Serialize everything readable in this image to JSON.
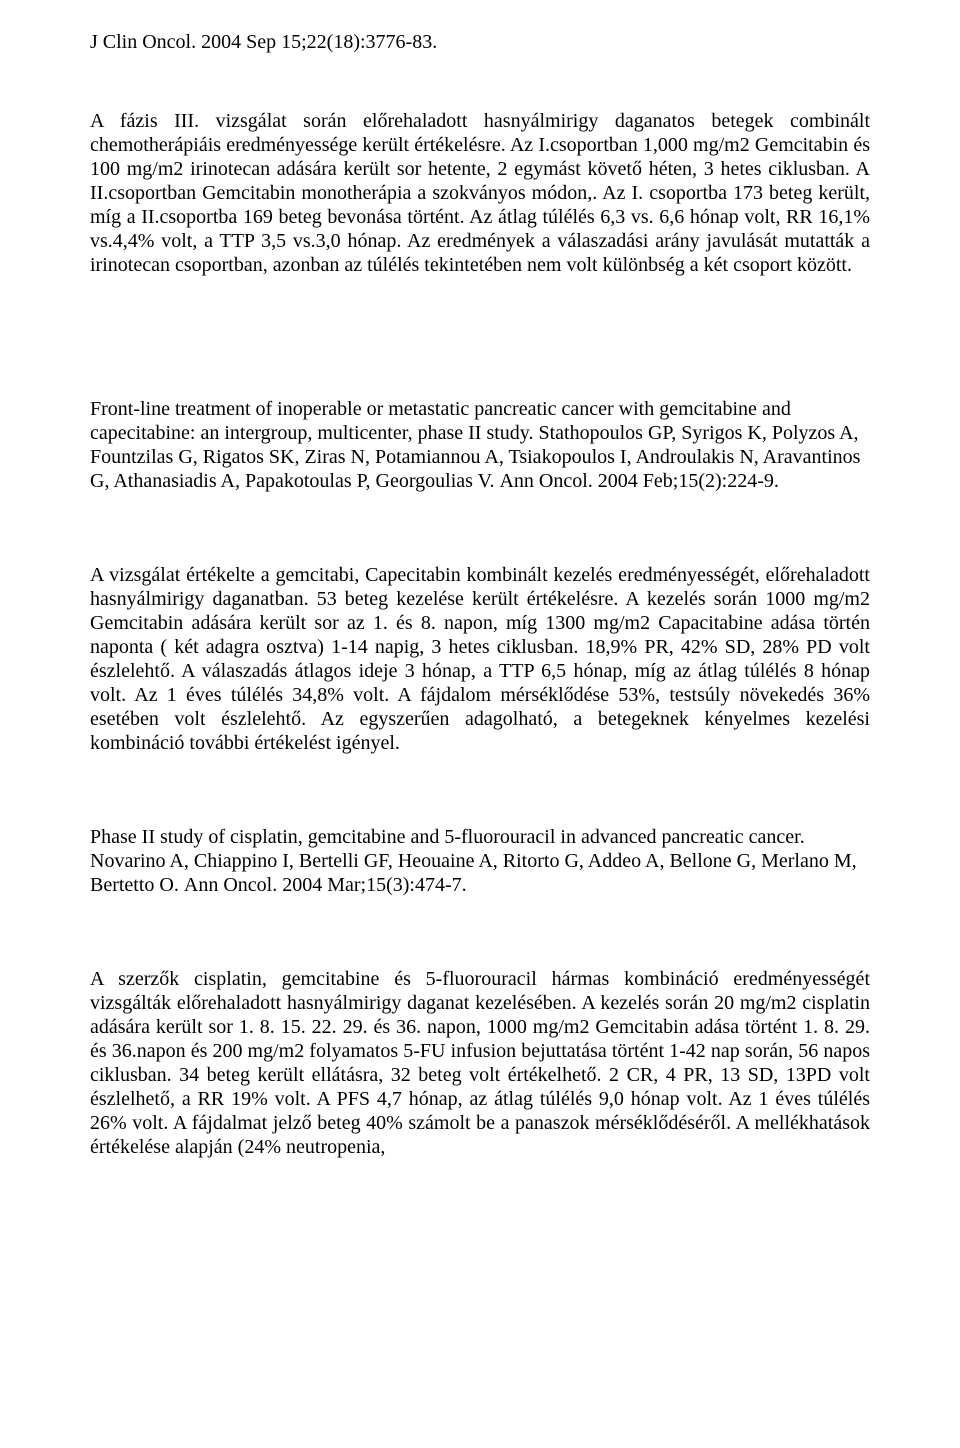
{
  "header": {
    "citation": "J Clin Oncol. 2004 Sep 15;22(18):3776-83."
  },
  "section1": {
    "para": "A fázis III. vizsgálat során előrehaladott hasnyálmirigy daganatos betegek combinált chemotherápiáis eredményessége került értékelésre. Az I.csoportban 1,000 mg/m2 Gemcitabin és 100 mg/m2 irinotecan adására került sor hetente, 2 egymást követő héten, 3 hetes ciklusban.  A II.csoportban Gemcitabin monotherápia a szokványos módon,. Az I. csoportba 173 beteg került, míg a II.csoportba 169 beteg bevonása történt. Az átlag túlélés 6,3 vs. 6,6 hónap volt, RR 16,1% vs.4,4% volt, a TTP 3,5 vs.3,0 hónap. Az eredmények a válaszadási arány javulását mutatták a irinotecan csoportban, azonban az túlélés tekintetében nem volt különbség a két csoport között."
  },
  "section2": {
    "title_line1": "Front-line treatment of inoperable or metastatic pancreatic cancer with",
    "title_line2": "gemcitabine and capecitabine: an intergroup, multicenter, phase II study.",
    "authors_line1": "Stathopoulos GP, Syrigos K, Polyzos A, Fountzilas G, Rigatos SK, Ziras N,",
    "authors_line2": "Potamiannou A, Tsiakopoulos I, Androulakis N, Aravantinos G, Athanasiadis A,",
    "authors_line3": "Papakotoulas P, Georgoulias V.",
    "citation": "Ann Oncol. 2004 Feb;15(2):224-9.",
    "para": "A vizsgálat értékelte a gemcitabi, Capecitabin kombinált kezelés eredményességét, előrehaladott hasnyálmirigy daganatban. 53 beteg kezelése került értékelésre. A kezelés során 1000 mg/m2 Gemcitabin adására került sor az 1. és 8. napon, míg 1300 mg/m2 Capacitabine adása történ naponta ( két adagra osztva) 1-14 napig, 3 hetes ciklusban. 18,9% PR, 42% SD, 28% PD volt észlelehtő. A válaszadás átlagos ideje 3 hónap, a TTP 6,5 hónap, míg az átlag túlélés 8 hónap volt. Az 1 éves túlélés 34,8% volt. A fájdalom mérséklődése 53%, testsúly növekedés 36% esetében volt észlelehtő.  Az egyszerűen adagolható, a betegeknek kényelmes kezelési kombináció további értékelést igényel."
  },
  "section3": {
    "title_line1": "Phase II study of cisplatin, gemcitabine and 5-fluorouracil in advanced",
    "title_line2": "pancreatic cancer.",
    "authors_line1": "Novarino A, Chiappino I, Bertelli GF, Heouaine A, Ritorto G, Addeo A, Bellone G,",
    "authors_line2": "Merlano M, Bertetto O.",
    "citation": "Ann Oncol. 2004 Mar;15(3):474-7.",
    "para": "A szerzők cisplatin, gemcitabine és 5-fluorouracil hármas kombináció eredményességét vizsgálták előrehaladott hasnyálmirigy daganat kezelésében. A kezelés során 20 mg/m2 cisplatin adására került sor 1. 8. 15. 22. 29. és 36. napon, 1000 mg/m2 Gemcitabin adása történt 1. 8. 29. és 36.napon és 200 mg/m2 folyamatos 5-FU infusion bejuttatása történt 1-42 nap során,  56 napos ciklusban. 34 beteg került ellátásra, 32 beteg volt értékelhető. 2 CR, 4 PR, 13 SD, 13PD volt észlelhető, a RR 19% volt. A PFS 4,7 hónap,  az átlag túlélés 9,0 hónap volt. Az 1 éves túlélés 26% volt. A fájdalmat jelző beteg 40% számolt be a panaszok mérséklődéséről. A mellékhatások értékelése alapján (24% neutropenia,"
  }
}
